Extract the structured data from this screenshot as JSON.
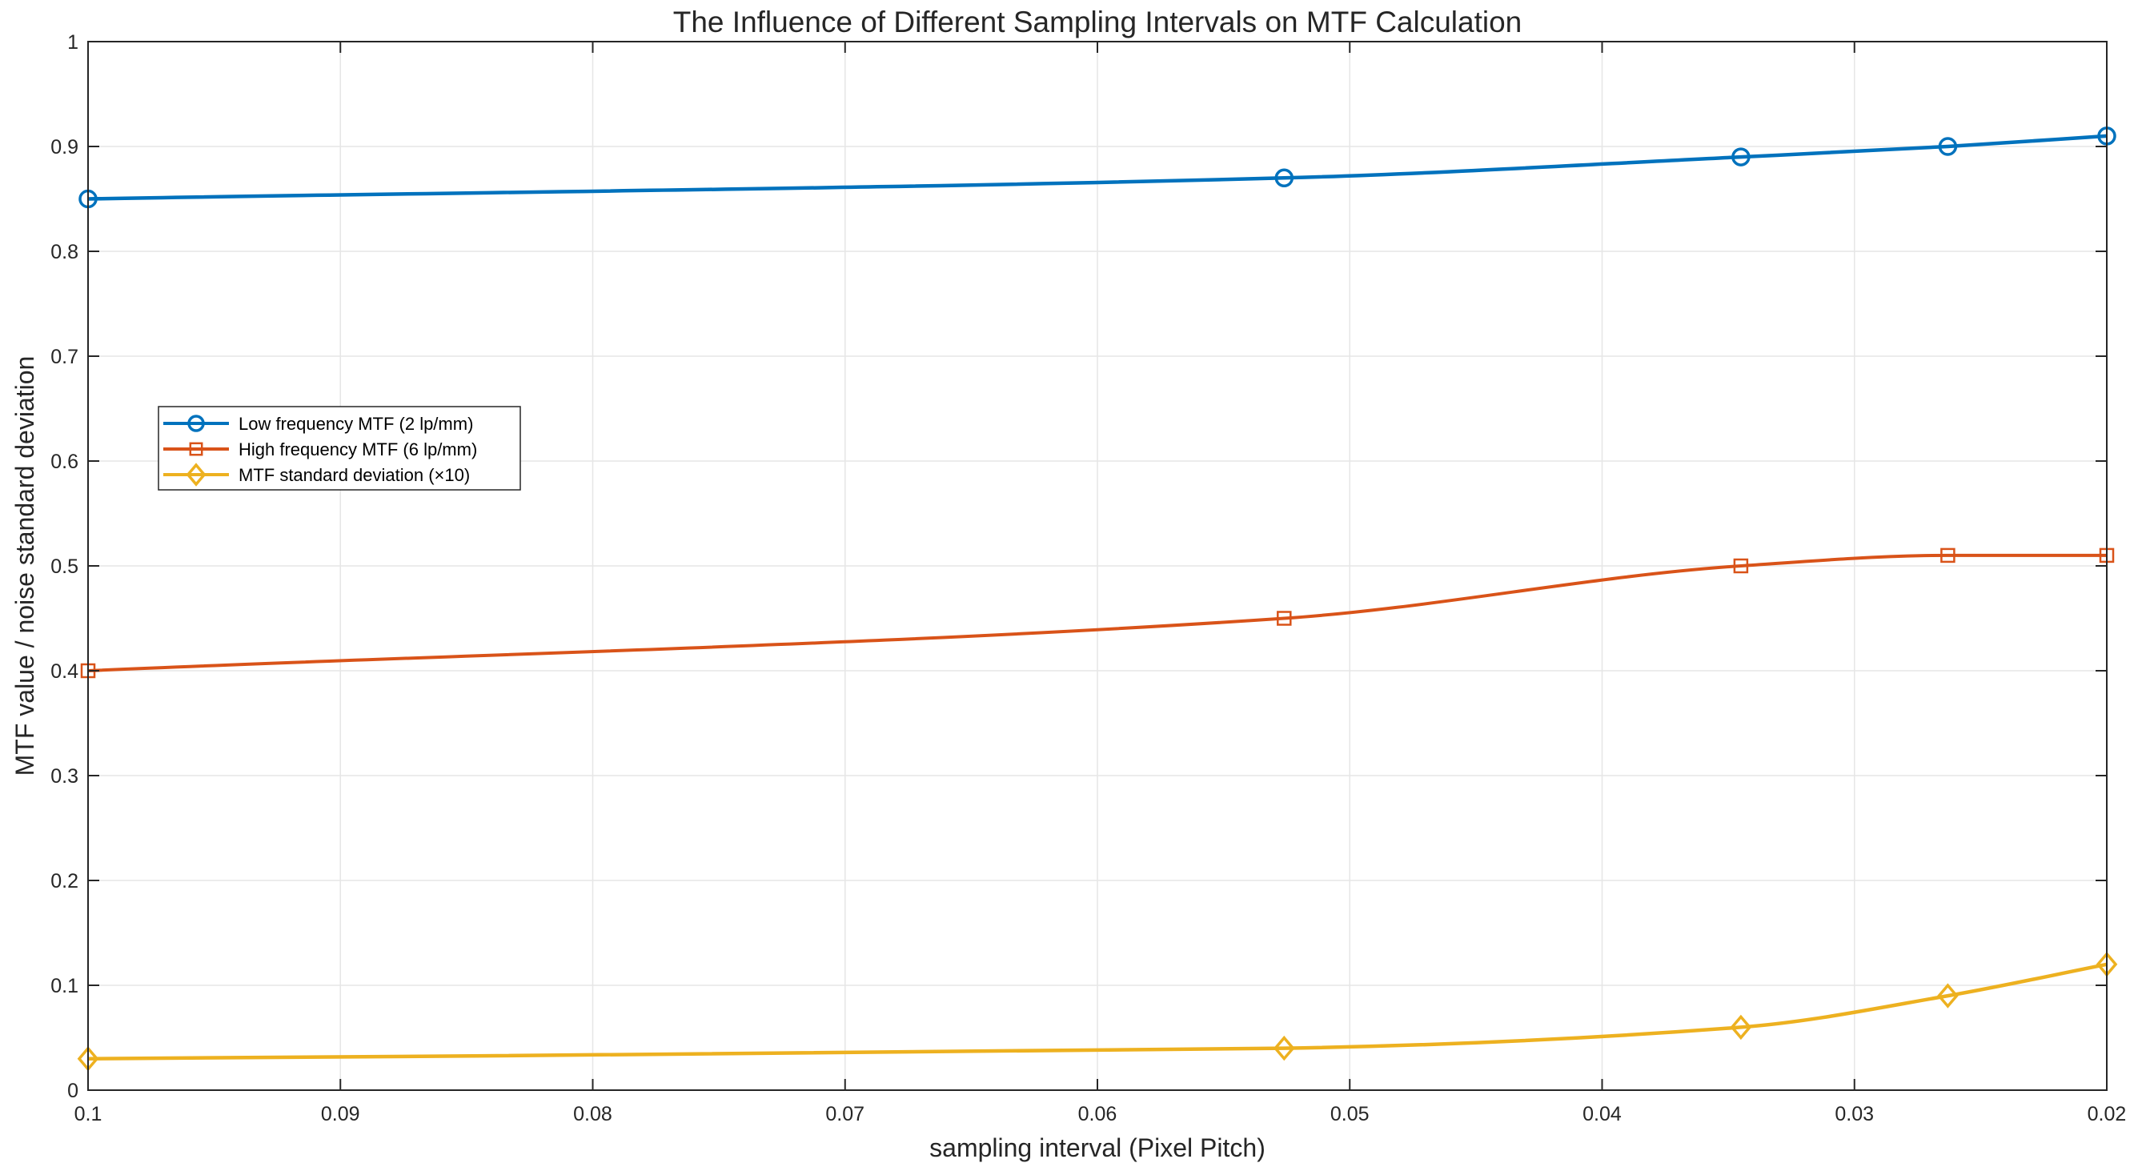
{
  "chart_data": {
    "type": "line",
    "title": "The Influence of Different Sampling Intervals on MTF Calculation",
    "xlabel": "sampling interval (Pixel Pitch)",
    "ylabel": "MTF value / noise standard deviation",
    "xlim": [
      0.1,
      0.02
    ],
    "x_reversed": true,
    "ylim": [
      0,
      1
    ],
    "grid": true,
    "legend_position": "upper-left",
    "xticks": [
      0.1,
      0.09,
      0.08,
      0.07,
      0.06,
      0.05,
      0.04,
      0.03,
      0.02
    ],
    "xtick_labels": [
      "0.1",
      "0.09",
      "0.08",
      "0.07",
      "0.06",
      "0.05",
      "0.04",
      "0.03",
      "0.02"
    ],
    "yticks": [
      0,
      0.1,
      0.2,
      0.3,
      0.4,
      0.5,
      0.6,
      0.7,
      0.8,
      0.9,
      1
    ],
    "ytick_labels": [
      "0",
      "0.1",
      "0.2",
      "0.3",
      "0.4",
      "0.5",
      "0.6",
      "0.7",
      "0.8",
      "0.9",
      "1"
    ],
    "x": [
      0.1,
      0.0526,
      0.0345,
      0.0263,
      0.02
    ],
    "series": [
      {
        "name": "Low frequency MTF (2 lp/mm)",
        "color": "#0072BD",
        "marker": "circle",
        "values": [
          0.85,
          0.87,
          0.89,
          0.9,
          0.91
        ]
      },
      {
        "name": "High frequency MTF (6 lp/mm)",
        "color": "#D95319",
        "marker": "square",
        "values": [
          0.4,
          0.45,
          0.5,
          0.51,
          0.51
        ]
      },
      {
        "name": "MTF standard deviation (×10)",
        "color": "#EDB120",
        "marker": "diamond",
        "values": [
          0.03,
          0.04,
          0.06,
          0.09,
          0.12
        ]
      }
    ]
  }
}
